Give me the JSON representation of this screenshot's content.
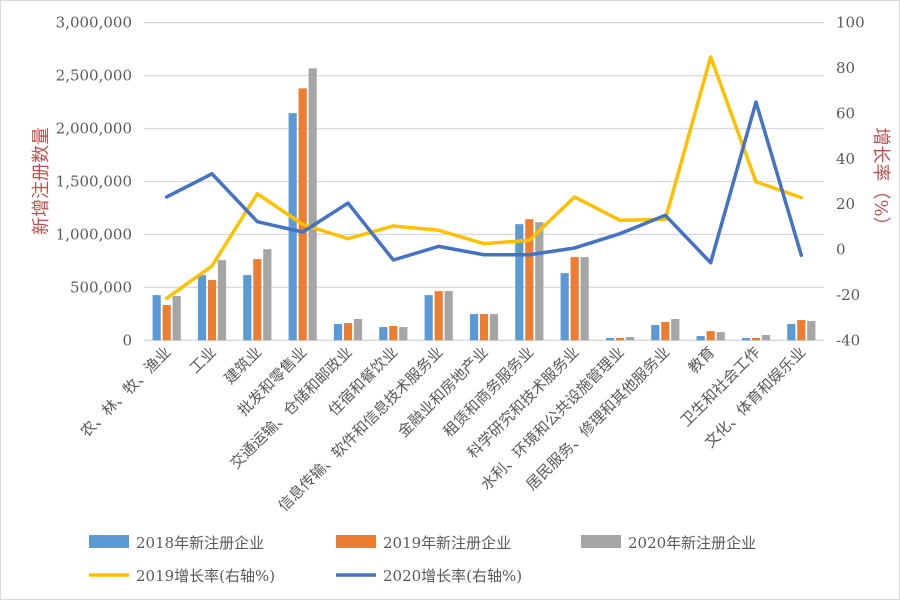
{
  "chart_data": {
    "type": "bar",
    "categories": [
      "农、林、牧、渔业",
      "工业",
      "建筑业",
      "批发和零售业",
      "交通运输、仓储和邮政业",
      "住宿和餐饮业",
      "信息传输、软件和信息技术服务业",
      "金融业和房地产业",
      "租赁和商务服务业",
      "科学研究和技术服务业",
      "水利、环境和公共设施管理业",
      "居民服务、修理和其他服务业",
      "教育",
      "卫生和社会工作",
      "文化、体育和娱乐业"
    ],
    "series": [
      {
        "name": "2018年新注册企业",
        "type": "bar",
        "axis": "left",
        "color": "#5b9bd5",
        "values": [
          427000,
          616000,
          616000,
          2146000,
          154000,
          125000,
          427000,
          248000,
          1097000,
          635000,
          22000,
          144000,
          40000,
          22000,
          154000
        ]
      },
      {
        "name": "2019年新注册企业",
        "type": "bar",
        "axis": "left",
        "color": "#ed7d31",
        "values": [
          333000,
          569000,
          767000,
          2380000,
          163000,
          135000,
          465000,
          248000,
          1144000,
          786000,
          22000,
          173000,
          87000,
          22000,
          191000
        ]
      },
      {
        "name": "2020年新注册企业",
        "type": "bar",
        "axis": "left",
        "color": "#a5a5a5",
        "values": [
          418000,
          757000,
          861000,
          2569000,
          201000,
          125000,
          465000,
          248000,
          1116000,
          786000,
          31000,
          201000,
          78000,
          50000,
          182000
        ]
      },
      {
        "name": "2019增长率(右轴%)",
        "type": "line",
        "axis": "right",
        "color": "#ffc000",
        "values": [
          -21.5,
          -7.2,
          24.6,
          11.1,
          4.8,
          10.4,
          8.5,
          2.6,
          4.1,
          23.2,
          12.9,
          13.3,
          84.9,
          29.9,
          22.9
        ]
      },
      {
        "name": "2020增长率(右轴%)",
        "type": "line",
        "axis": "right",
        "color": "#4472c4",
        "values": [
          23.2,
          33.4,
          12.3,
          7.7,
          20.5,
          -4.6,
          1.4,
          -2.3,
          -2.3,
          0.7,
          7.0,
          15.1,
          -5.8,
          65.0,
          -2.5
        ]
      }
    ],
    "ylabel": "新增注册数量",
    "y2label": "增长率（%）",
    "ylim": [
      0,
      3000000
    ],
    "y2lim": [
      -40,
      100
    ],
    "yticks": [
      "0",
      "500,000",
      "1,000,000",
      "1,500,000",
      "2,000,000",
      "2,500,000",
      "3,000,000"
    ],
    "y2ticks": [
      "-40",
      "-20",
      "0",
      "20",
      "40",
      "60",
      "80",
      "100"
    ],
    "grid": true,
    "legend": "bottom",
    "axis_title_color": "#c0504d"
  }
}
